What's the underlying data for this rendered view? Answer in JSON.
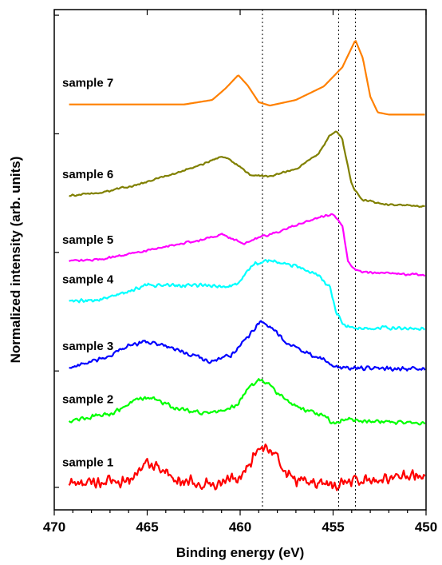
{
  "chart_data": {
    "type": "line",
    "xlabel": "Binding energy (eV)",
    "ylabel": "Normalized intensity (arb. units)",
    "xlim": [
      470,
      450
    ],
    "x_reversed": true,
    "xticks": [
      470,
      465,
      460,
      455,
      450
    ],
    "y_ticks_labeled": false,
    "reference_lines_x": [
      458.8,
      454.7,
      453.8
    ],
    "x_range": [
      469.2,
      450
    ],
    "series": [
      {
        "name": "sample 1",
        "color": "#ff0000",
        "noise": 0.065,
        "points": [
          [
            469.2,
            0.05
          ],
          [
            466,
            0.08
          ],
          [
            465,
            0.24
          ],
          [
            464.2,
            0.18
          ],
          [
            463,
            0.07
          ],
          [
            461,
            0.05
          ],
          [
            460,
            0.1
          ],
          [
            459.2,
            0.32
          ],
          [
            458.6,
            0.37
          ],
          [
            458.1,
            0.33
          ],
          [
            457.6,
            0.16
          ],
          [
            457,
            0.09
          ],
          [
            455.6,
            0.06
          ],
          [
            455,
            0.02
          ],
          [
            454,
            0.08
          ],
          [
            452,
            0.1
          ],
          [
            450,
            0.14
          ]
        ]
      },
      {
        "name": "sample 2",
        "color": "#00ff00",
        "noise": 0.022,
        "points": [
          [
            469.2,
            0.61
          ],
          [
            467,
            0.67
          ],
          [
            465.5,
            0.8
          ],
          [
            464.8,
            0.82
          ],
          [
            463.5,
            0.72
          ],
          [
            461.5,
            0.67
          ],
          [
            460.3,
            0.73
          ],
          [
            459.6,
            0.88
          ],
          [
            459,
            0.97
          ],
          [
            458.5,
            0.95
          ],
          [
            458,
            0.85
          ],
          [
            457,
            0.74
          ],
          [
            456,
            0.68
          ],
          [
            455.3,
            0.63
          ],
          [
            455,
            0.58
          ],
          [
            454.5,
            0.62
          ],
          [
            452,
            0.6
          ],
          [
            450,
            0.59
          ]
        ]
      },
      {
        "name": "sample 3",
        "color": "#0000ff",
        "noise": 0.022,
        "points": [
          [
            469.2,
            1.08
          ],
          [
            467.5,
            1.15
          ],
          [
            466,
            1.27
          ],
          [
            465,
            1.31
          ],
          [
            464,
            1.27
          ],
          [
            462.5,
            1.19
          ],
          [
            461.5,
            1.13
          ],
          [
            460.5,
            1.19
          ],
          [
            459.5,
            1.37
          ],
          [
            458.9,
            1.5
          ],
          [
            458.3,
            1.43
          ],
          [
            457.5,
            1.3
          ],
          [
            456.3,
            1.2
          ],
          [
            455.4,
            1.14
          ],
          [
            455,
            1.08
          ],
          [
            454,
            1.08
          ],
          [
            452,
            1.07
          ],
          [
            450,
            1.07
          ]
        ]
      },
      {
        "name": "sample 4",
        "color": "#00ffff",
        "noise": 0.02,
        "points": [
          [
            469.2,
            1.67
          ],
          [
            467.5,
            1.68
          ],
          [
            466.5,
            1.73
          ],
          [
            465,
            1.81
          ],
          [
            462.5,
            1.81
          ],
          [
            460.5,
            1.8
          ],
          [
            460,
            1.84
          ],
          [
            459.3,
            2.0
          ],
          [
            458.5,
            2.03
          ],
          [
            457,
            1.98
          ],
          [
            456,
            1.92
          ],
          [
            455.2,
            1.8
          ],
          [
            454.8,
            1.56
          ],
          [
            454.4,
            1.45
          ],
          [
            453.5,
            1.43
          ],
          [
            452,
            1.43
          ],
          [
            450,
            1.43
          ]
        ]
      },
      {
        "name": "sample 5",
        "color": "#ff00ff",
        "noise": 0.012,
        "points": [
          [
            469.2,
            2.02
          ],
          [
            467.5,
            2.04
          ],
          [
            465.5,
            2.1
          ],
          [
            463.5,
            2.17
          ],
          [
            462,
            2.21
          ],
          [
            461,
            2.26
          ],
          [
            460.3,
            2.21
          ],
          [
            459.8,
            2.18
          ],
          [
            459,
            2.23
          ],
          [
            458,
            2.28
          ],
          [
            456.5,
            2.37
          ],
          [
            455.5,
            2.42
          ],
          [
            455,
            2.44
          ],
          [
            454.5,
            2.33
          ],
          [
            454.2,
            2.03
          ],
          [
            453.8,
            1.94
          ],
          [
            453,
            1.92
          ],
          [
            450,
            1.9
          ]
        ]
      },
      {
        "name": "sample 6",
        "color": "#808000",
        "noise": 0.01,
        "points": [
          [
            469.2,
            2.6
          ],
          [
            467.5,
            2.63
          ],
          [
            465.5,
            2.7
          ],
          [
            463.5,
            2.8
          ],
          [
            462,
            2.88
          ],
          [
            461,
            2.95
          ],
          [
            460.5,
            2.92
          ],
          [
            459.5,
            2.79
          ],
          [
            458.5,
            2.77
          ],
          [
            457,
            2.84
          ],
          [
            455.8,
            2.97
          ],
          [
            455.2,
            3.13
          ],
          [
            454.8,
            3.17
          ],
          [
            454.5,
            3.1
          ],
          [
            454,
            2.7
          ],
          [
            453.5,
            2.57
          ],
          [
            452,
            2.52
          ],
          [
            450,
            2.51
          ]
        ]
      },
      {
        "name": "sample 7",
        "color": "#ff8000",
        "noise": 0.0,
        "points": [
          [
            469.2,
            3.41
          ],
          [
            466,
            3.41
          ],
          [
            463,
            3.41
          ],
          [
            461.5,
            3.45
          ],
          [
            460.8,
            3.55
          ],
          [
            460.1,
            3.67
          ],
          [
            459.6,
            3.58
          ],
          [
            459,
            3.43
          ],
          [
            458.4,
            3.4
          ],
          [
            457,
            3.45
          ],
          [
            455.5,
            3.57
          ],
          [
            454.5,
            3.74
          ],
          [
            453.8,
            3.98
          ],
          [
            453.4,
            3.82
          ],
          [
            453,
            3.48
          ],
          [
            452.6,
            3.34
          ],
          [
            452,
            3.32
          ],
          [
            450,
            3.32
          ]
        ]
      }
    ]
  }
}
